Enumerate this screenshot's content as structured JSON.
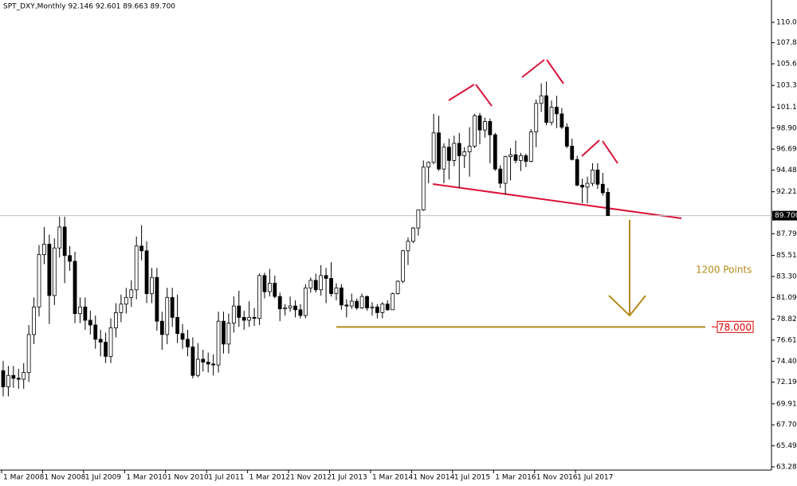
{
  "chart_data": {
    "type": "candlestick",
    "title": "SPT_DXY,Monthly  92.146 92.601 89.663 89.700",
    "categories": [
      "1 Mar 2008",
      null,
      null,
      null,
      null,
      null,
      null,
      null,
      "1 Nov 2008",
      null,
      null,
      null,
      null,
      null,
      null,
      null,
      "1 Jul 2009",
      null,
      null,
      null,
      null,
      null,
      null,
      null,
      "1 Mar 2010",
      null,
      null,
      null,
      null,
      null,
      null,
      null,
      "1 Nov 2010",
      null,
      null,
      null,
      null,
      null,
      null,
      null,
      "1 Jul 2011",
      null,
      null,
      null,
      null,
      null,
      null,
      null,
      "1 Mar 2012",
      null,
      null,
      null,
      null,
      null,
      null,
      null,
      "1 Nov 2012",
      null,
      null,
      null,
      null,
      null,
      null,
      null,
      "1 Jul 2013",
      null,
      null,
      null,
      null,
      null,
      null,
      null,
      "1 Mar 2014",
      null,
      null,
      null,
      null,
      null,
      null,
      null,
      "1 Nov 2014",
      null,
      null,
      null,
      null,
      null,
      null,
      null,
      "1 Jul 2015",
      null,
      null,
      null,
      null,
      null,
      null,
      null,
      "1 Mar 2016",
      null,
      null,
      null,
      null,
      null,
      null,
      null,
      "1 Nov 2016",
      null,
      null,
      null,
      null,
      null,
      null,
      null,
      "1 Jul 2017",
      null,
      null,
      null,
      null,
      null,
      null
    ],
    "open": [
      73.4,
      71.7,
      72.9,
      72.6,
      72.5,
      73.2,
      77.2,
      80.1,
      85.6,
      86.7,
      81.3,
      86.3,
      88.5,
      85.5,
      84.9,
      79.4,
      80.1,
      78.7,
      78.2,
      76.7,
      76.4,
      74.9,
      77.9,
      79.5,
      80.4,
      81.1,
      81.9,
      86.5,
      86.0,
      81.5,
      83.2,
      78.6,
      77.2,
      81.1,
      79.0,
      77.3,
      76.7,
      75.9,
      72.9,
      74.6,
      74.3,
      74.1,
      74.0,
      78.6,
      76.2,
      78.4,
      80.2,
      79.0,
      78.7,
      79.0,
      78.9,
      83.4,
      81.7,
      82.6,
      81.2,
      79.9,
      80.0,
      80.2,
      79.8,
      79.2,
      82.1,
      82.9,
      81.9,
      83.4,
      83.1,
      81.5,
      82.1,
      80.3,
      80.2,
      80.7,
      80.0,
      81.2,
      80.0,
      80.1,
      79.5,
      80.4,
      79.8,
      81.5,
      82.8,
      86.0,
      87.0,
      88.4,
      90.3,
      94.8,
      95.3,
      98.4,
      94.6,
      96.9,
      95.5,
      97.3,
      96.0,
      96.4,
      97.0,
      100.2,
      98.7,
      99.6,
      98.2,
      94.6,
      93.1,
      95.9,
      96.1,
      95.5,
      96.0,
      95.4,
      98.5,
      101.5,
      102.3,
      99.5,
      101.1,
      100.4,
      99.0,
      97.0,
      95.6,
      92.9,
      92.7,
      93.1,
      94.5,
      93.0,
      92.146
    ],
    "high": [
      74.4,
      73.9,
      73.9,
      73.6,
      74.2,
      78.2,
      81.1,
      86.6,
      88.5,
      87.7,
      87.3,
      89.6,
      89.6,
      86.5,
      85.9,
      81.1,
      81.1,
      79.7,
      79.2,
      77.7,
      77.4,
      78.9,
      80.5,
      81.4,
      82.1,
      82.9,
      87.5,
      88.7,
      87.0,
      84.2,
      84.2,
      79.6,
      82.1,
      82.1,
      81.4,
      78.3,
      77.7,
      76.9,
      76.3,
      75.6,
      75.3,
      75.1,
      79.6,
      79.6,
      79.4,
      81.2,
      81.8,
      79.7,
      80.7,
      80.0,
      83.6,
      83.7,
      84.1,
      83.4,
      81.6,
      80.4,
      81.2,
      80.8,
      80.4,
      82.5,
      83.2,
      83.6,
      84.5,
      84.2,
      84.8,
      82.6,
      82.5,
      80.9,
      81.5,
      81.0,
      81.5,
      81.3,
      80.6,
      80.4,
      80.6,
      80.8,
      81.6,
      82.9,
      86.1,
      87.4,
      88.5,
      90.3,
      95.5,
      95.4,
      100.4,
      100.2,
      97.3,
      97.8,
      98.1,
      98.4,
      96.9,
      99.0,
      100.4,
      100.5,
      100.0,
      99.9,
      98.4,
      95.0,
      96.0,
      96.8,
      97.6,
      96.3,
      96.2,
      98.8,
      101.9,
      103.6,
      103.8,
      101.8,
      102.3,
      101.0,
      99.4,
      97.8,
      96.0,
      93.6,
      93.8,
      95.2,
      95.2,
      94.2,
      92.601
    ],
    "low": [
      70.7,
      70.7,
      71.6,
      71.5,
      71.5,
      72.2,
      76.2,
      79.1,
      84.6,
      78.3,
      80.3,
      85.3,
      82.6,
      83.9,
      78.4,
      78.4,
      77.7,
      77.2,
      75.7,
      74.9,
      74.2,
      74.2,
      76.9,
      78.5,
      79.4,
      80.1,
      80.9,
      85.0,
      80.5,
      80.5,
      77.6,
      75.6,
      76.2,
      78.0,
      76.3,
      75.7,
      74.9,
      72.6,
      72.7,
      73.3,
      73.2,
      72.9,
      73.2,
      75.2,
      75.2,
      77.4,
      78.0,
      77.7,
      78.0,
      78.1,
      78.2,
      81.0,
      81.2,
      81.0,
      78.6,
      79.2,
      79.6,
      79.0,
      78.9,
      78.9,
      81.6,
      81.6,
      81.3,
      80.5,
      81.2,
      80.8,
      79.8,
      79.0,
      79.9,
      79.8,
      79.9,
      79.7,
      79.2,
      78.9,
      78.9,
      79.7,
      79.8,
      81.4,
      82.6,
      84.5,
      86.8,
      87.6,
      90.2,
      93.1,
      95.1,
      94.4,
      93.1,
      93.5,
      94.9,
      92.6,
      94.7,
      93.8,
      96.8,
      97.2,
      97.9,
      95.2,
      94.4,
      92.6,
      91.9,
      93.4,
      95.2,
      94.4,
      94.8,
      95.3,
      96.9,
      100.6,
      99.2,
      99.2,
      98.9,
      98.8,
      96.8,
      95.5,
      92.8,
      91.0,
      91.0,
      92.8,
      92.5,
      91.8,
      89.663
    ],
    "close": [
      71.7,
      72.9,
      72.6,
      72.5,
      73.2,
      77.2,
      80.1,
      85.6,
      86.7,
      81.3,
      86.3,
      88.5,
      85.5,
      84.9,
      79.4,
      80.1,
      78.7,
      78.2,
      76.7,
      76.4,
      74.9,
      77.9,
      79.5,
      80.4,
      81.1,
      81.9,
      86.5,
      86.0,
      81.5,
      83.2,
      78.6,
      77.2,
      81.1,
      79.0,
      77.3,
      76.7,
      75.9,
      72.9,
      74.6,
      74.3,
      74.1,
      74.0,
      78.6,
      76.2,
      78.4,
      80.2,
      79.0,
      78.7,
      79.0,
      78.9,
      83.4,
      81.7,
      82.6,
      81.2,
      79.9,
      80.0,
      80.2,
      79.8,
      79.2,
      82.1,
      82.9,
      81.9,
      83.4,
      83.1,
      81.5,
      82.1,
      80.3,
      80.2,
      80.7,
      80.0,
      81.2,
      80.0,
      80.1,
      79.5,
      80.4,
      79.8,
      81.5,
      82.8,
      86.0,
      87.0,
      88.4,
      90.3,
      94.8,
      95.3,
      98.4,
      94.6,
      96.9,
      95.5,
      97.3,
      96.0,
      96.4,
      97.0,
      100.2,
      98.7,
      99.6,
      98.2,
      94.6,
      93.1,
      95.9,
      96.1,
      95.5,
      96.0,
      95.4,
      98.5,
      101.5,
      102.3,
      99.5,
      101.1,
      100.4,
      99.0,
      97.0,
      95.6,
      92.9,
      92.7,
      93.1,
      94.5,
      93.0,
      92.1,
      89.7
    ],
    "up_color": "#ffffff",
    "down_color": "#000000",
    "ylim": [
      62.95,
      112.37
    ],
    "yticks": [
      {
        "value": 63.285,
        "label": "63.285"
      },
      {
        "value": 65.495,
        "label": "65.495"
      },
      {
        "value": 67.705,
        "label": "67.705"
      },
      {
        "value": 69.915,
        "label": "69.915"
      },
      {
        "value": 72.19,
        "label": "72.190"
      },
      {
        "value": 74.4,
        "label": "74.400"
      },
      {
        "value": 76.61,
        "label": "76.610"
      },
      {
        "value": 78.82,
        "label": "78.820"
      },
      {
        "value": 81.095,
        "label": "81.095"
      },
      {
        "value": 83.305,
        "label": "83.305"
      },
      {
        "value": 85.515,
        "label": "85.515"
      },
      {
        "value": 87.79,
        "label": "87.790"
      },
      {
        "value": 92.21,
        "label": "92.210"
      },
      {
        "value": 94.485,
        "label": "94.485"
      },
      {
        "value": 96.695,
        "label": "96.695"
      },
      {
        "value": 98.905,
        "label": "98.905"
      },
      {
        "value": 101.115,
        "label": "101.115"
      },
      {
        "value": 103.39,
        "label": "103.390"
      },
      {
        "value": 105.665,
        "label": "105.665"
      },
      {
        "value": 107.875,
        "label": "107.875"
      },
      {
        "value": 110.02,
        "label": "110.020"
      }
    ],
    "price_line": {
      "value": 89.7,
      "label": "89.700"
    },
    "target": {
      "value": 78,
      "label": "78.000",
      "color": "#b5891a"
    },
    "annotation": "1200 Points"
  }
}
